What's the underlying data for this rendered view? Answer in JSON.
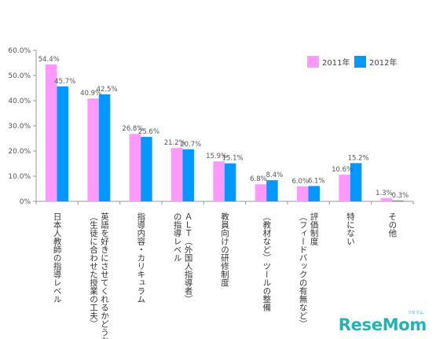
{
  "chart_data": {
    "type": "bar",
    "ylim": [
      0,
      60
    ],
    "yticks": [
      "0%",
      "10.0%",
      "20.0%",
      "30.0%",
      "40.0%",
      "50.0%",
      "60.0%"
    ],
    "grid": false,
    "legend_position": "top-right",
    "categories": [
      [
        "日本人教師の指導レベル"
      ],
      [
        "英語を好きにさせてくれるかどうか",
        "（生徒に合わせた授業の工夫）"
      ],
      [
        "指導内容・カリキュラム"
      ],
      [
        "ＡＬＴ（外国人指導者）",
        "の指導レベル"
      ],
      [
        "教員向けの研修制度"
      ],
      [
        "（教材など）ツールの整備"
      ],
      [
        "評価制度",
        "（フィードバックの有無など）"
      ],
      [
        "特にない"
      ],
      [
        "その他"
      ]
    ],
    "series": [
      {
        "name": "2011年",
        "color": "#ff99ff",
        "values": [
          54.4,
          40.9,
          26.8,
          21.2,
          15.9,
          6.8,
          6.0,
          10.6,
          1.3
        ],
        "labels": [
          "54.4%",
          "40.9%",
          "26.8%",
          "21.2%",
          "15.9%",
          "6.8%",
          "6.0%",
          "10.6%",
          "1.3%"
        ]
      },
      {
        "name": "2012年",
        "color": "#0099ff",
        "values": [
          45.7,
          42.5,
          25.6,
          20.7,
          15.1,
          8.4,
          6.1,
          15.2,
          0.3
        ],
        "labels": [
          "45.7%",
          "42.5%",
          "25.6%",
          "20.7%",
          "15.1%",
          "8.4%",
          "6.1%",
          "15.2%",
          "0.3%"
        ]
      }
    ]
  },
  "brand": {
    "logo": "ReseMom",
    "logo_sub": "リセマム"
  }
}
